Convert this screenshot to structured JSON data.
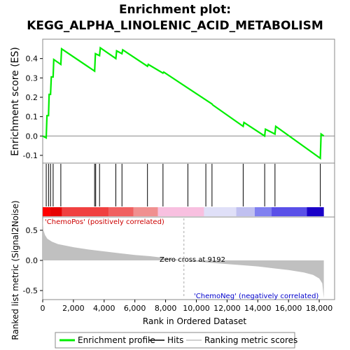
{
  "chart_data": {
    "type": "line",
    "title_line1": "Enrichment plot:",
    "title_line2": "KEGG_ALPHA_LINOLENIC_ACID_METABOLISM",
    "xlabel": "Rank in Ordered Dataset",
    "es_ylabel": "Enrichment score (ES)",
    "metric_ylabel_line1": "Ranked list metric (Signal2Noise)",
    "xlim": [
      0,
      19000
    ],
    "es_ylim": [
      -0.14,
      0.5
    ],
    "metric_ylim": [
      -0.65,
      0.72
    ],
    "x_ticks": [
      0,
      2000,
      4000,
      6000,
      8000,
      10000,
      12000,
      14000,
      16000,
      18000
    ],
    "x_tick_labels": [
      "0",
      "2,000",
      "4,000",
      "6,000",
      "8,000",
      "10,000",
      "12,000",
      "14,000",
      "16,000",
      "18,000"
    ],
    "es_ticks": [
      -0.1,
      0.0,
      0.1,
      0.2,
      0.3,
      0.4
    ],
    "es_tick_labels": [
      "-0.1",
      "0.0",
      "0.1",
      "0.2",
      "0.3",
      "0.4"
    ],
    "metric_ticks": [
      -0.5,
      0.0,
      0.5
    ],
    "metric_tick_labels": [
      "-0.5",
      "0.0",
      "0.5"
    ],
    "series": [
      {
        "name": "Enrichment profile",
        "color": "#00ee00",
        "x": [
          0,
          230,
          280,
          380,
          420,
          510,
          560,
          680,
          720,
          1180,
          1230,
          3380,
          3430,
          3700,
          3750,
          4760,
          4810,
          5160,
          5210,
          6820,
          6870,
          7830,
          7880,
          11020,
          11070,
          13050,
          13100,
          14450,
          14500,
          15120,
          15170,
          18070,
          18120,
          18300
        ],
        "y": [
          0.0,
          -0.01,
          0.105,
          0.105,
          0.215,
          0.215,
          0.305,
          0.305,
          0.395,
          0.37,
          0.45,
          0.335,
          0.425,
          0.415,
          0.455,
          0.4,
          0.44,
          0.425,
          0.445,
          0.36,
          0.37,
          0.325,
          0.33,
          0.165,
          0.16,
          0.05,
          0.07,
          0.0,
          0.035,
          0.01,
          0.05,
          -0.115,
          0.01,
          0.0
        ]
      }
    ],
    "hits": [
      230,
      380,
      510,
      680,
      1180,
      3380,
      3450,
      3700,
      4760,
      5160,
      6820,
      7830,
      9450,
      10620,
      11020,
      13050,
      14450,
      15120,
      18070
    ],
    "metric": {
      "x": [
        0,
        50,
        150,
        300,
        600,
        1000,
        2000,
        3000,
        4000,
        5000,
        6000,
        7000,
        8000,
        9192,
        10000,
        11000,
        12000,
        13000,
        14000,
        15000,
        16000,
        17000,
        17600,
        18000,
        18200,
        18300
      ],
      "y": [
        0.7,
        0.5,
        0.42,
        0.36,
        0.31,
        0.27,
        0.22,
        0.18,
        0.15,
        0.12,
        0.09,
        0.07,
        0.04,
        0.0,
        -0.02,
        -0.04,
        -0.06,
        -0.08,
        -0.1,
        -0.13,
        -0.16,
        -0.2,
        -0.24,
        -0.3,
        -0.38,
        -0.63
      ],
      "fill_color": "#c0c0c0"
    },
    "zero_cross": 9192,
    "zero_cross_label": "Zero cross at 9192",
    "pos_label": "'ChemoPos' (positively correlated)",
    "neg_label": "'ChemoNeg' (negatively correlated)",
    "pos_label_color": "#cc0000",
    "neg_label_color": "#0000cc",
    "colorbar": [
      {
        "from": 0,
        "to": 480,
        "color": "#ff0000"
      },
      {
        "from": 480,
        "to": 1250,
        "color": "#e60000"
      },
      {
        "from": 1250,
        "to": 4300,
        "color": "#f04040"
      },
      {
        "from": 4300,
        "to": 5900,
        "color": "#f06060"
      },
      {
        "from": 5900,
        "to": 7500,
        "color": "#f09090"
      },
      {
        "from": 7500,
        "to": 10500,
        "color": "#f8c0e0"
      },
      {
        "from": 10500,
        "to": 12600,
        "color": "#e0e0f8"
      },
      {
        "from": 12600,
        "to": 13800,
        "color": "#c0c0f0"
      },
      {
        "from": 13800,
        "to": 14900,
        "color": "#8080f0"
      },
      {
        "from": 14900,
        "to": 17200,
        "color": "#5a50e8"
      },
      {
        "from": 17200,
        "to": 18300,
        "color": "#1a00c8"
      }
    ],
    "legend": [
      {
        "label": "Enrichment profile",
        "color": "#00ee00",
        "kind": "line-thick"
      },
      {
        "label": "Hits",
        "color": "#000000",
        "kind": "line-thin"
      },
      {
        "label": "Ranking metric scores",
        "color": "#c0c0c0",
        "kind": "line-thin"
      }
    ]
  }
}
